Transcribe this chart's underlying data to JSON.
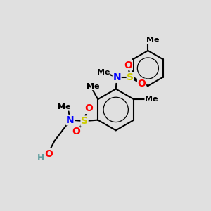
{
  "background_color": "#e0e0e0",
  "atom_colors": {
    "N": "#0000ff",
    "O": "#ff0000",
    "S": "#cccc00",
    "H": "#5f9ea0",
    "C": "#000000"
  },
  "bond_color": "#000000",
  "bond_lw": 1.5,
  "figsize": [
    3.0,
    3.0
  ],
  "dpi": 100,
  "xlim": [
    0,
    10
  ],
  "ylim": [
    0,
    10
  ]
}
